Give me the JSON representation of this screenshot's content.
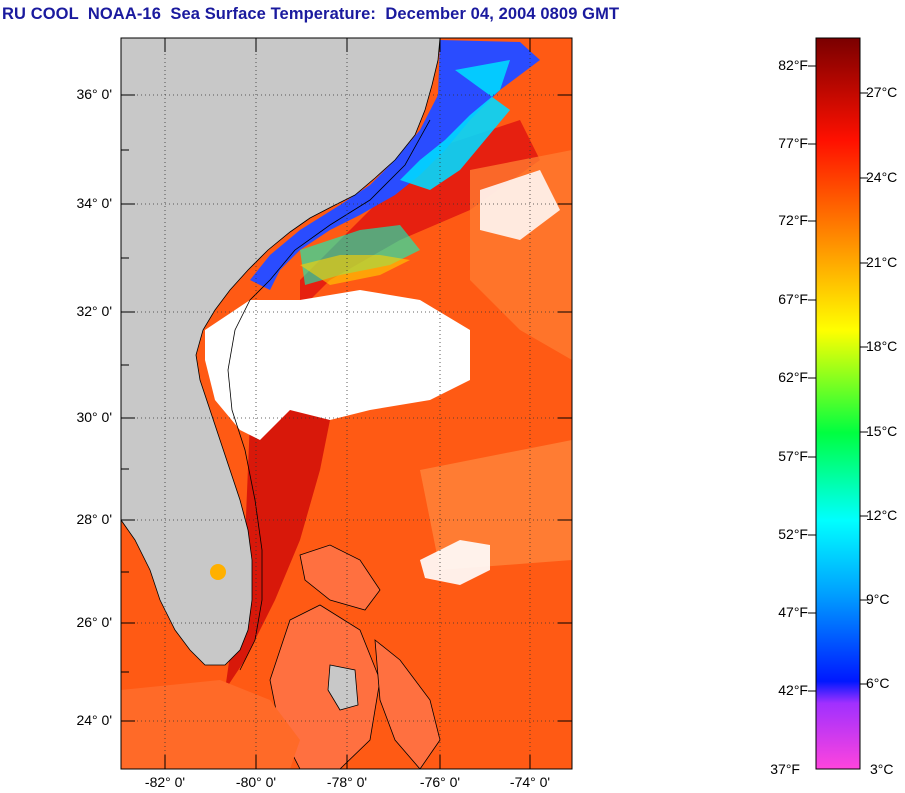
{
  "title": "RU COOL  NOAA-16  Sea Surface Temperature:  December 04, 2004 0809 GMT",
  "map": {
    "lat_labels": [
      "36° 0'",
      "34° 0'",
      "32° 0'",
      "30° 0'",
      "28° 0'",
      "26° 0'",
      "24° 0'"
    ],
    "lon_labels": [
      "-82° 0'",
      "-80° 0'",
      "-78° 0'",
      "-76° 0'",
      "-74° 0'"
    ],
    "colors": {
      "land": "#c8c8c8",
      "cloud": "#ffffff",
      "gulf_stream": "#e01c0c",
      "warm_water": "#ff5a14",
      "shelf_cold": "#2a4cff"
    }
  },
  "colorbar": {
    "fahrenheit": [
      "82°F",
      "77°F",
      "72°F",
      "67°F",
      "62°F",
      "57°F",
      "52°F",
      "47°F",
      "42°F",
      "37°F"
    ],
    "celsius": [
      "27°C",
      "24°C",
      "21°C",
      "18°C",
      "15°C",
      "12°C",
      "9°C",
      "6°C",
      "3°C"
    ],
    "stops": [
      "#ff44dd",
      "#8020ff",
      "#0018ff",
      "#00a0ff",
      "#00ffff",
      "#00ff40",
      "#ffff00",
      "#ff8000",
      "#ff0000",
      "#7a0000"
    ]
  }
}
